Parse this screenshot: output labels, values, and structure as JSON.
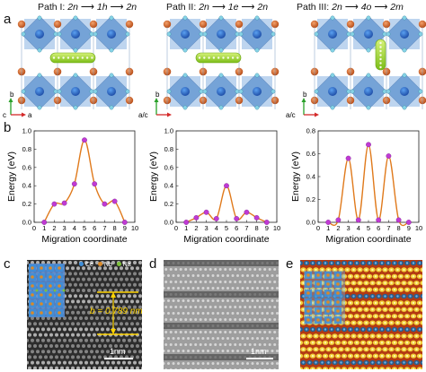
{
  "panel_labels": {
    "a": "a",
    "b": "b",
    "c": "c",
    "d": "d",
    "e": "e"
  },
  "paths": [
    {
      "name": "Path I:",
      "from": "2n",
      "mid": "1h",
      "to": "2n",
      "axes": [
        "b",
        "c",
        "a"
      ]
    },
    {
      "name": "Path II:",
      "from": "2n",
      "mid": "1e",
      "to": "2n",
      "axes": [
        "b",
        "a/c",
        ""
      ]
    },
    {
      "name": "Path III:",
      "from": "2n",
      "mid": "4o",
      "to": "2m",
      "axes": [
        "b",
        "a/c",
        ""
      ]
    }
  ],
  "colors": {
    "curve": "#e07a1c",
    "point": "#c03ad4",
    "octahedron": "#4f86c6",
    "cation": "#d96a2a",
    "oxygen": "#86d3e6",
    "migrating_ion": "#9ad02a"
  },
  "chart_data": [
    {
      "type": "line",
      "title": "",
      "xlabel": "Migration coordinate",
      "ylabel": "Energy (eV)",
      "xlim": [
        0,
        10
      ],
      "ylim": [
        0,
        1.0
      ],
      "xticks": [
        0,
        1,
        2,
        3,
        4,
        5,
        6,
        7,
        8,
        9,
        10
      ],
      "yticks": [
        0.0,
        0.2,
        0.4,
        0.6,
        0.8,
        1.0
      ],
      "x": [
        1,
        2,
        3,
        4,
        5,
        6,
        7,
        8,
        9
      ],
      "series": [
        {
          "values": [
            0.0,
            0.2,
            0.21,
            0.42,
            0.9,
            0.42,
            0.2,
            0.23,
            0.0
          ]
        }
      ]
    },
    {
      "type": "line",
      "title": "",
      "xlabel": "Migration coordinate",
      "ylabel": "Energy (eV)",
      "xlim": [
        0,
        10
      ],
      "ylim": [
        0,
        1.0
      ],
      "xticks": [
        0,
        1,
        2,
        3,
        4,
        5,
        6,
        7,
        8,
        9,
        10
      ],
      "yticks": [
        0.0,
        0.2,
        0.4,
        0.6,
        0.8,
        1.0
      ],
      "x": [
        1,
        2,
        3,
        4,
        5,
        6,
        7,
        8,
        9
      ],
      "series": [
        {
          "values": [
            0.0,
            0.05,
            0.11,
            0.04,
            0.4,
            0.04,
            0.11,
            0.05,
            0.0
          ]
        }
      ]
    },
    {
      "type": "line",
      "title": "",
      "xlabel": "Migration coordinate",
      "ylabel": "Energy (eV)",
      "xlim": [
        0,
        10
      ],
      "ylim": [
        0,
        0.8
      ],
      "xticks": [
        0,
        1,
        2,
        3,
        4,
        5,
        6,
        7,
        8,
        9,
        10
      ],
      "yticks": [
        0.0,
        0.2,
        0.4,
        0.6,
        0.8
      ],
      "x": [
        1,
        2,
        3,
        4,
        5,
        6,
        7,
        8,
        9
      ],
      "series": [
        {
          "values": [
            0.0,
            0.02,
            0.56,
            0.02,
            0.68,
            0.02,
            0.58,
            0.02,
            0.0
          ]
        }
      ]
    }
  ],
  "micrograph_c": {
    "legend": [
      {
        "symbol": "Ce",
        "color": "#3f8ed8"
      },
      {
        "symbol": "Nb",
        "color": "#d98a2a"
      },
      {
        "symbol": "Na",
        "color": "#7cc23a"
      }
    ],
    "measurement": "b = 0.789 nm",
    "scale_bar": "1nm"
  },
  "micrograph_d": {
    "scale_bar": "1nm"
  }
}
